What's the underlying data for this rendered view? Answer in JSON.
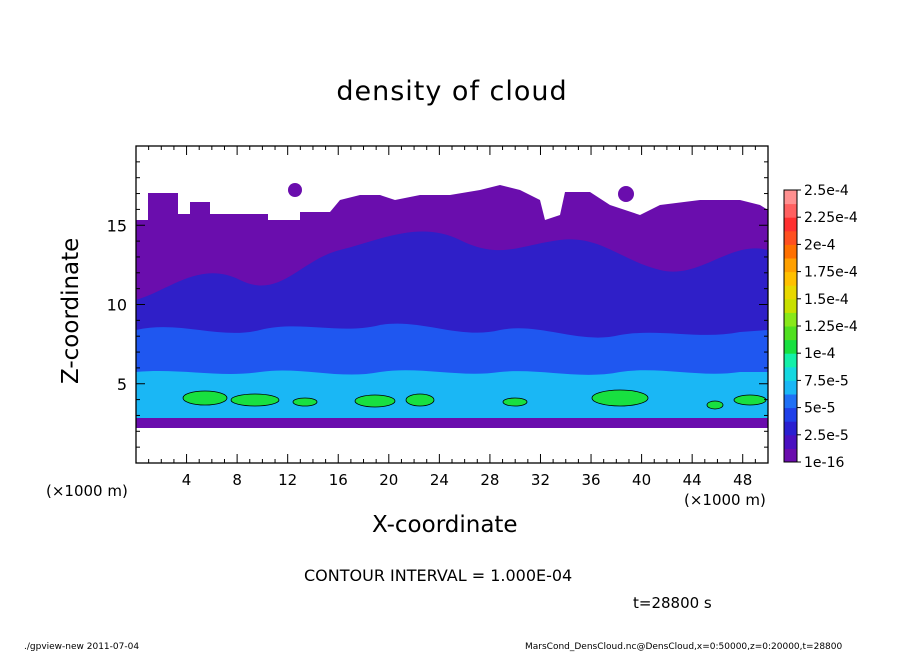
{
  "chart_data": {
    "type": "heatmap",
    "title": "density of cloud",
    "xlabel": "X-coordinate",
    "ylabel": "Z-coordinate",
    "x_unit_label": "(×1000 m)",
    "x_unit_label_right": "(×1000 m)",
    "xlim": [
      0,
      50
    ],
    "ylim": [
      0,
      20
    ],
    "x_ticks": [
      4,
      8,
      12,
      16,
      20,
      24,
      28,
      32,
      36,
      40,
      44,
      48
    ],
    "y_ticks": [
      5,
      10,
      15
    ],
    "colorbar": {
      "levels": [
        "1e-16",
        "2.5e-5",
        "5e-5",
        "7.5e-5",
        "1e-4",
        "1.25e-4",
        "1.5e-4",
        "1.75e-4",
        "2e-4",
        "2.25e-4",
        "2.5e-4"
      ],
      "colors": [
        "#6a0dad",
        "#2a1fd0",
        "#1f57f0",
        "#1ab7f5",
        "#13f0a8",
        "#18e040",
        "#88e81a",
        "#e8d800",
        "#ffa000",
        "#ff5020",
        "#ff9090"
      ]
    },
    "contour_interval": "CONTOUR INTERVAL = 1.000E-04",
    "time_label": "t=28800 s",
    "footer_left": "./gpview-new   2011-07-04",
    "footer_right": "MarsCond_DensCloud.nc@DensCloud,x=0:50000,z=0:20000,t=28800"
  },
  "colors": {
    "upper_cloud": "#6a0dad",
    "mid_cloud": "#2f1fc8",
    "low_cloud": "#1f57f0",
    "dense_layer": "#1ab7f5",
    "core": "#18e040"
  }
}
